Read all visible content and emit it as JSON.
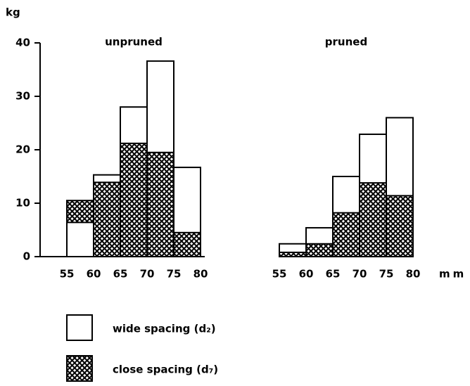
{
  "chart_data": {
    "type": "histogram",
    "ylabel": "kg",
    "xlabel": "mm",
    "bins": [
      55,
      60,
      65,
      70,
      75,
      80
    ],
    "ylim": [
      0,
      40
    ],
    "yticks": [
      0,
      10,
      20,
      30,
      40
    ],
    "series": [
      {
        "name": "wide spacing (d₂)",
        "color": "#ffffff"
      },
      {
        "name": "close spacing (d₇)",
        "color": "#000000",
        "pattern": "hatched"
      }
    ],
    "panels": [
      {
        "title": "unpruned",
        "series": [
          {
            "values": [
              6.4,
              15.3,
              28.0,
              36.6,
              16.7
            ]
          },
          {
            "values": [
              10.5,
              13.9,
              21.2,
              19.5,
              4.5
            ]
          }
        ]
      },
      {
        "title": "pruned",
        "series": [
          {
            "values": [
              2.4,
              5.4,
              15.0,
              22.9,
              26.0
            ]
          },
          {
            "values": [
              0.8,
              2.4,
              8.2,
              13.8,
              11.4
            ]
          }
        ]
      }
    ]
  }
}
